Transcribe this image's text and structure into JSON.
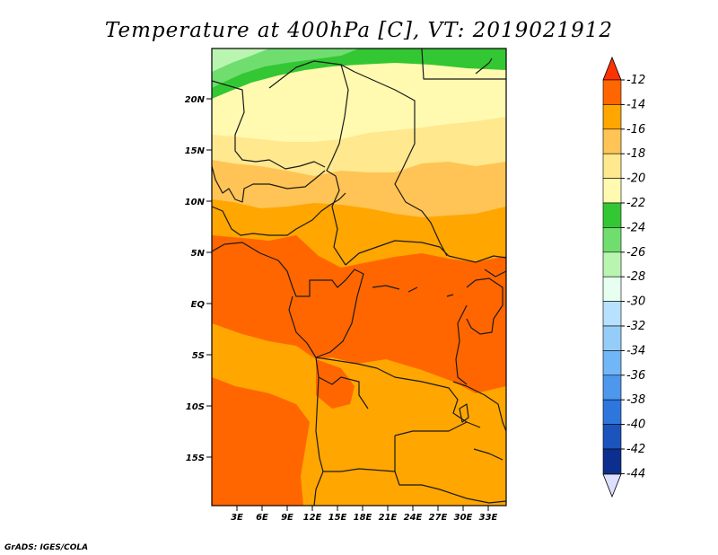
{
  "title": "Temperature at 400hPa [C], VT: 2019021912",
  "credit": "GrADS: IGES/COLA",
  "map": {
    "lat_labels": [
      "20N",
      "15N",
      "10N",
      "5N",
      "EQ",
      "5S",
      "10S",
      "15S"
    ],
    "lon_labels": [
      "3E",
      "6E",
      "9E",
      "12E",
      "15E",
      "18E",
      "21E",
      "24E",
      "27E",
      "30E",
      "33E"
    ],
    "temperature_bands": [
      {
        "range": "-26 to -24",
        "color": "#6fde6f"
      },
      {
        "range": "-24 to -22",
        "color": "#33c733"
      },
      {
        "range": "-22 to -20",
        "color": "#fffab0"
      },
      {
        "range": "-20 to -18",
        "color": "#ffe88e"
      },
      {
        "range": "-18 to -16",
        "color": "#ffc455"
      },
      {
        "range": "-16 to -14",
        "color": "#ffa600"
      },
      {
        "range": "-14 to -12",
        "color": "#ff6600"
      }
    ]
  },
  "colorbar": {
    "labels": [
      "-12",
      "-14",
      "-16",
      "-18",
      "-20",
      "-22",
      "-24",
      "-26",
      "-28",
      "-30",
      "-32",
      "-34",
      "-36",
      "-38",
      "-40",
      "-42",
      "-44"
    ],
    "colors": [
      "#ff6600",
      "#ffa600",
      "#ffc455",
      "#ffe88e",
      "#fffab0",
      "#33c733",
      "#6fde6f",
      "#b9f5b0",
      "#e6fff0",
      "#b7e1ff",
      "#96cdf8",
      "#71b6f6",
      "#4d97ec",
      "#2d76dd",
      "#1c54bd",
      "#0c2f8f"
    ],
    "top_arrow_color": "#ff3300",
    "bottom_arrow_color": "#dde0ff"
  }
}
